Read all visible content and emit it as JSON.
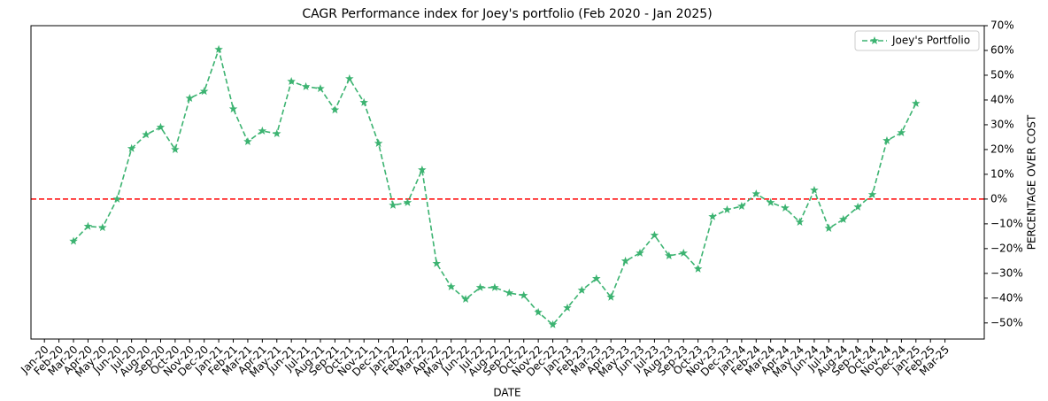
{
  "chart_data": {
    "type": "line",
    "title": "CAGR Performance index for Joey's portfolio (Feb 2020 - Jan 2025)",
    "xlabel": "DATE",
    "ylabel": "PERCENTAGE OVER COST",
    "categories": [
      "Jan-20",
      "Feb-20",
      "Mar-20",
      "Apr-20",
      "May-20",
      "Jun-20",
      "Jul-20",
      "Aug-20",
      "Sep-20",
      "Oct-20",
      "Nov-20",
      "Dec-20",
      "Jan-21",
      "Feb-21",
      "Mar-21",
      "Apr-21",
      "May-21",
      "Jun-21",
      "Jul-21",
      "Aug-21",
      "Sep-21",
      "Oct-21",
      "Nov-21",
      "Dec-21",
      "Jan-22",
      "Feb-22",
      "Mar-22",
      "Apr-22",
      "May-22",
      "Jun-22",
      "Jul-22",
      "Aug-22",
      "Sep-22",
      "Oct-22",
      "Nov-22",
      "Dec-22",
      "Jan-23",
      "Feb-23",
      "Mar-23",
      "Apr-23",
      "May-23",
      "Jun-23",
      "Jul-23",
      "Aug-23",
      "Sep-23",
      "Oct-23",
      "Nov-23",
      "Dec-23",
      "Jan-24",
      "Feb-24",
      "Mar-24",
      "Apr-24",
      "May-24",
      "Jun-24",
      "Jul-24",
      "Aug-24",
      "Sep-24",
      "Oct-24",
      "Nov-24",
      "Dec-24",
      "Jan-25",
      "Feb-25",
      "Mar-25"
    ],
    "series": [
      {
        "name": "Joey's Portfolio",
        "color": "#3cb371",
        "values": [
          null,
          null,
          -17,
          -11,
          -11.5,
          0,
          20.4,
          26,
          29,
          20,
          40.7,
          43.5,
          60.4,
          36.4,
          23.2,
          27.5,
          26.4,
          47.5,
          45.4,
          44.6,
          36,
          48.6,
          39,
          22.5,
          -2.5,
          -1.4,
          11.8,
          -26,
          -35.4,
          -40.4,
          -35.7,
          -35.7,
          -37.9,
          -38.9,
          -45.7,
          -50.7,
          -43.9,
          -36.8,
          -32.1,
          -39.6,
          -25,
          -21.8,
          -14.6,
          -22.9,
          -21.8,
          -28.2,
          -7.1,
          -4.3,
          -2.9,
          2.1,
          -1.4,
          -3.6,
          -9.3,
          3.6,
          -11.8,
          -8.2,
          -3.2,
          1.8,
          23.6,
          26.8,
          38.6,
          null,
          null
        ]
      }
    ],
    "hline": {
      "value": 0,
      "color": "#ff0000"
    },
    "ylim": [
      -56.5,
      70
    ],
    "yticks": [
      {
        "value": -50,
        "label": "−50%"
      },
      {
        "value": -40,
        "label": "−40%"
      },
      {
        "value": -30,
        "label": "−30%"
      },
      {
        "value": -20,
        "label": "−20%"
      },
      {
        "value": -10,
        "label": "−10%"
      },
      {
        "value": 0,
        "label": "0%"
      },
      {
        "value": 10,
        "label": "10%"
      },
      {
        "value": 20,
        "label": "20%"
      },
      {
        "value": 30,
        "label": "30%"
      },
      {
        "value": 40,
        "label": "40%"
      },
      {
        "value": 50,
        "label": "50%"
      },
      {
        "value": 60,
        "label": "60%"
      },
      {
        "value": 70,
        "label": "70%"
      }
    ],
    "legend": "upper right",
    "grid": false
  }
}
